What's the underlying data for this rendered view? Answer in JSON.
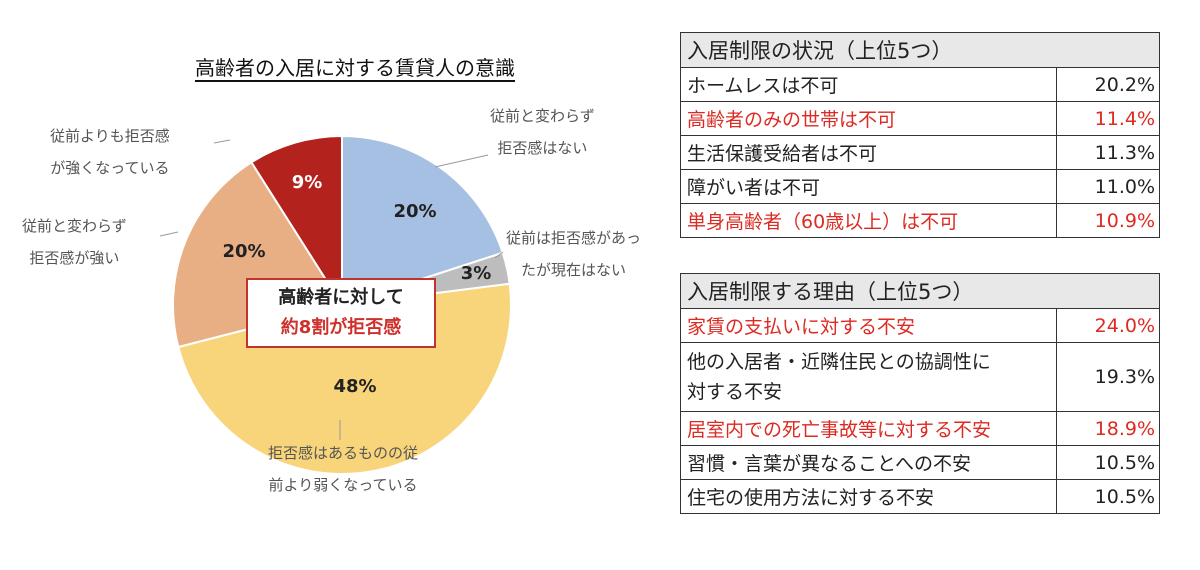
{
  "chart_data": {
    "type": "pie",
    "title": "高齢者の入居に対する賃貸人の意識",
    "slices": [
      {
        "category": "従前と変わらず拒否感はない",
        "category_lines": [
          "従前と変わらず",
          "拒否感はない"
        ],
        "value": 20,
        "label": "20%",
        "color": "#a6c0e3"
      },
      {
        "category": "従前は拒否感があったが現在はない",
        "category_lines": [
          "従前は拒否感があっ",
          "たが現在はない"
        ],
        "value": 3,
        "label": "3%",
        "color": "#bdbdbd"
      },
      {
        "category": "拒否感はあるものの従前より弱くなっている",
        "category_lines": [
          "拒否感はあるものの従",
          "前より弱くなっている"
        ],
        "value": 48,
        "label": "48%",
        "color": "#f8d57a"
      },
      {
        "category": "従前と変わらず拒否感が強い",
        "category_lines": [
          "従前と変わらず",
          "拒否感が強い"
        ],
        "value": 20,
        "label": "20%",
        "color": "#e8ae84"
      },
      {
        "category": "従前よりも拒否感が強くなっている",
        "category_lines": [
          "従前よりも拒否感",
          "が強くなっている"
        ],
        "value": 9,
        "label": "9%",
        "color": "#b3221c"
      }
    ],
    "callout": {
      "line1": "高齢者に対して",
      "line2": "約8割が拒否感"
    }
  },
  "colors": {
    "accent_red": "#dd2a22",
    "callout_border": "#c0342d",
    "table_header_bg": "#e8e8e8"
  },
  "tables": [
    {
      "title": "入居制限の状況（上位5つ）",
      "rows": [
        {
          "label": "ホームレスは不可",
          "value": "20.2%",
          "highlight": false
        },
        {
          "label": "高齢者のみの世帯は不可",
          "value": "11.4%",
          "highlight": true
        },
        {
          "label": "生活保護受給者は不可",
          "value": "11.3%",
          "highlight": false
        },
        {
          "label": "障がい者は不可",
          "value": "11.0%",
          "highlight": false
        },
        {
          "label": "単身高齢者（60歳以上）は不可",
          "value": "10.9%",
          "highlight": true
        }
      ]
    },
    {
      "title": "入居制限する理由（上位5つ）",
      "rows": [
        {
          "label": "家賃の支払いに対する不安",
          "value": "24.0%",
          "highlight": true
        },
        {
          "label": "他の入居者・近隣住民との協調性に対する不安",
          "label_lines": [
            "他の入居者・近隣住民との協調性に",
            "対する不安"
          ],
          "value": "19.3%",
          "highlight": false
        },
        {
          "label": "居室内での死亡事故等に対する不安",
          "value": "18.9%",
          "highlight": true
        },
        {
          "label": "習慣・言葉が異なることへの不安",
          "value": "10.5%",
          "highlight": false
        },
        {
          "label": "住宅の使用方法に対する不安",
          "value": "10.5%",
          "highlight": false
        }
      ]
    }
  ]
}
